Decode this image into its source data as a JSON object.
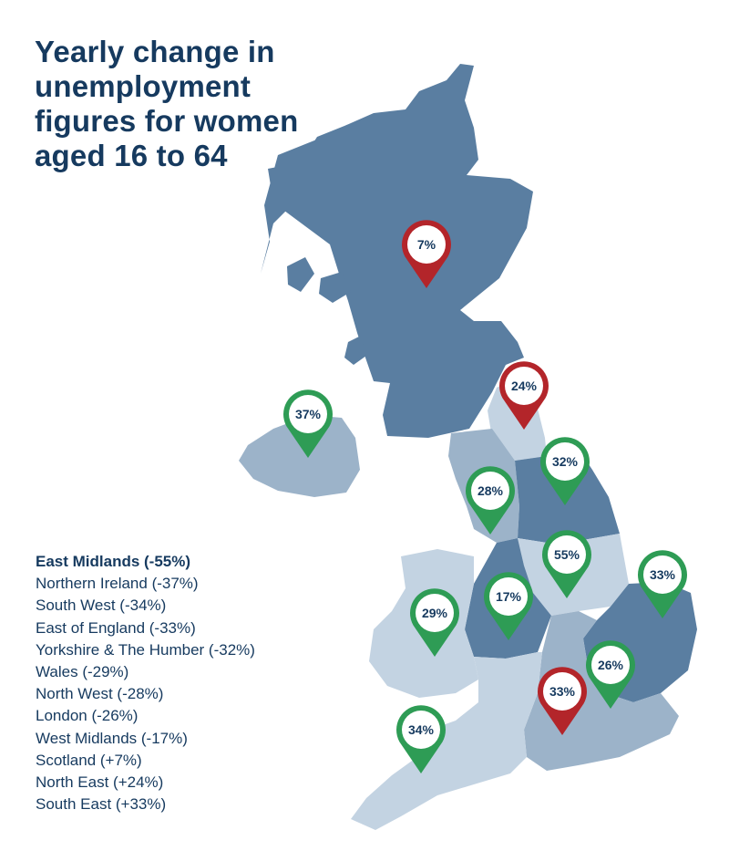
{
  "title": "Yearly change in unemployment figures for women aged 16 to 64",
  "colors": {
    "title_text": "#163a5f",
    "region_dark": "#5a7ea1",
    "region_mid": "#9cb3c9",
    "region_light": "#c3d3e2",
    "pin_increase": "#b3252a",
    "pin_decrease": "#2e9c55"
  },
  "legend": [
    "East Midlands (-55%)",
    "Northern Ireland (-37%)",
    "South West (-34%)",
    "East of England (-33%)",
    "Yorkshire & The Humber (-32%)",
    "Wales (-29%)",
    "North West (-28%)",
    "London (-26%)",
    "West Midlands (-17%)",
    "Scotland (+7%)",
    "North East (+24%)",
    "South East (+33%)"
  ],
  "pins": [
    {
      "region": "Scotland",
      "label": "7%",
      "direction": "increase"
    },
    {
      "region": "North East",
      "label": "24%",
      "direction": "increase"
    },
    {
      "region": "Northern Ireland",
      "label": "37%",
      "direction": "decrease"
    },
    {
      "region": "Yorkshire & The Humber",
      "label": "32%",
      "direction": "decrease"
    },
    {
      "region": "North West",
      "label": "28%",
      "direction": "decrease"
    },
    {
      "region": "East Midlands",
      "label": "55%",
      "direction": "decrease"
    },
    {
      "region": "East of England",
      "label": "33%",
      "direction": "decrease"
    },
    {
      "region": "West Midlands",
      "label": "17%",
      "direction": "decrease"
    },
    {
      "region": "Wales",
      "label": "29%",
      "direction": "decrease"
    },
    {
      "region": "London",
      "label": "26%",
      "direction": "decrease"
    },
    {
      "region": "South East",
      "label": "33%",
      "direction": "increase"
    },
    {
      "region": "South West",
      "label": "34%",
      "direction": "decrease"
    }
  ]
}
